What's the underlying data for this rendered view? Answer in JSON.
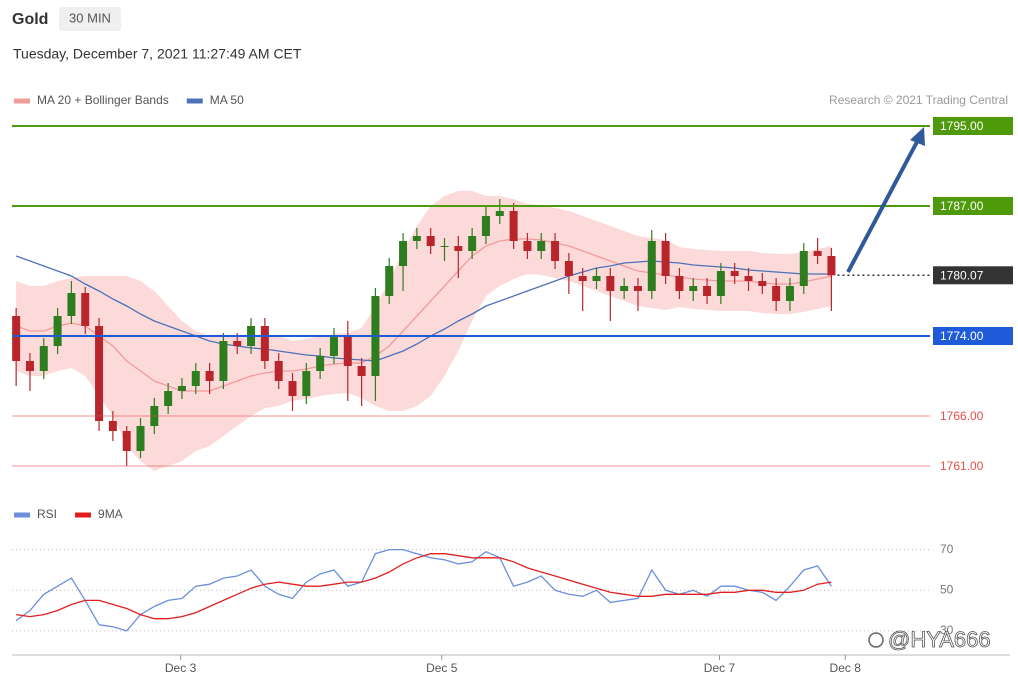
{
  "header": {
    "title": "Gold",
    "interval": "30 MIN",
    "timestamp": "Tuesday, December 7, 2021 11:27:49 AM CET"
  },
  "watermark": "@HYA666",
  "chart_data": [
    {
      "type": "candlestick",
      "credit": "Research © 2021 Trading Central",
      "xlim": [
        -0.3,
        60.2
      ],
      "ylim": [
        1758,
        1796.5
      ],
      "up_color": "#2e7d1f",
      "down_color": "#b8262b",
      "open": [
        1776,
        1771.5,
        1770.5,
        1773,
        1776,
        1778.3,
        1775,
        1765.5,
        1764.5,
        1762.5,
        1765,
        1767,
        1768.5,
        1769,
        1770.5,
        1769.5,
        1773.5,
        1773,
        1775,
        1771.5,
        1769.5,
        1768,
        1770.5,
        1772,
        1774,
        1771,
        1770,
        1778,
        1781,
        1783.5,
        1784,
        1783,
        1783,
        1782.5,
        1784,
        1786,
        1786.5,
        1783.5,
        1782.5,
        1783.5,
        1781.5,
        1780,
        1779.5,
        1780,
        1778.5,
        1779,
        1778.5,
        1783.5,
        1780,
        1778.5,
        1779,
        1778,
        1780.5,
        1780,
        1779.5,
        1779,
        1777.5,
        1779,
        1782.5,
        1782
      ],
      "high": [
        1776.8,
        1772.3,
        1773.8,
        1776.8,
        1779.5,
        1778.9,
        1775.8,
        1766.5,
        1765,
        1765.8,
        1767.8,
        1769.3,
        1769.8,
        1771.3,
        1771.3,
        1774.3,
        1774.3,
        1775.8,
        1775.8,
        1772.3,
        1770.3,
        1771.3,
        1772.8,
        1774.8,
        1775.5,
        1771.8,
        1778.8,
        1781.8,
        1784.3,
        1784.8,
        1784.8,
        1783.8,
        1784,
        1784.8,
        1787,
        1787.7,
        1787.3,
        1784.3,
        1784.3,
        1784.3,
        1782.3,
        1780.8,
        1780.8,
        1780.8,
        1779.8,
        1779.8,
        1784.6,
        1784.3,
        1780.8,
        1779.8,
        1779.8,
        1781.3,
        1781.3,
        1780.8,
        1780.3,
        1779.8,
        1779.8,
        1783.3,
        1783.8,
        1782.8
      ],
      "low": [
        1769,
        1768.5,
        1769.7,
        1772.2,
        1775.2,
        1774.2,
        1764.5,
        1763.5,
        1761,
        1761.8,
        1764.2,
        1766.2,
        1767.7,
        1768.2,
        1768.2,
        1768.7,
        1772.2,
        1772.2,
        1770.7,
        1768.7,
        1766.5,
        1767.2,
        1769.7,
        1771.2,
        1767.5,
        1767,
        1767.5,
        1777.2,
        1778.5,
        1782.7,
        1782.2,
        1781.5,
        1779.8,
        1781.7,
        1783.2,
        1785.2,
        1782.7,
        1781.7,
        1781.7,
        1780.7,
        1778.2,
        1776.5,
        1778.7,
        1775.5,
        1777.7,
        1776.5,
        1777.7,
        1779.2,
        1777.7,
        1777.5,
        1777.2,
        1777.2,
        1779.2,
        1778.5,
        1778.2,
        1776.5,
        1776.5,
        1778.2,
        1781.2,
        1776.5
      ],
      "close": [
        1771.5,
        1770.5,
        1773,
        1776,
        1778.3,
        1775,
        1765.5,
        1764.5,
        1762.5,
        1765,
        1767,
        1768.5,
        1769,
        1770.5,
        1769.5,
        1773.5,
        1773,
        1775,
        1771.5,
        1769.5,
        1768,
        1770.5,
        1772,
        1774,
        1771,
        1770,
        1778,
        1781,
        1783.5,
        1784,
        1783,
        1783,
        1782.5,
        1784,
        1786,
        1786.5,
        1783.5,
        1782.5,
        1783.5,
        1781.5,
        1780,
        1779.5,
        1780,
        1778.5,
        1779,
        1778.5,
        1783.5,
        1780,
        1778.5,
        1779,
        1778,
        1780.5,
        1780,
        1779.5,
        1779,
        1777.5,
        1779,
        1782.5,
        1782,
        1780.07
      ],
      "overlays": [
        {
          "name": "MA 20 + Bollinger Bands",
          "color": "#f29b9b",
          "band_color": "#fcdada",
          "values": [
            1775,
            1774.5,
            1774.5,
            1775,
            1775.3,
            1775,
            1774,
            1773,
            1771.5,
            1770.5,
            1769.5,
            1769,
            1768.5,
            1768.5,
            1768.5,
            1769,
            1769.5,
            1770,
            1770.3,
            1770.5,
            1770.5,
            1770.7,
            1771,
            1771.2,
            1771.3,
            1771.3,
            1772,
            1773,
            1774.5,
            1776,
            1777.5,
            1779,
            1780.5,
            1782,
            1783,
            1783.5,
            1783.7,
            1783.7,
            1783.6,
            1783.3,
            1783,
            1782.5,
            1782,
            1781.5,
            1781,
            1780.5,
            1780.3,
            1780.1,
            1779.9,
            1779.7,
            1779.6,
            1779.5,
            1779.5,
            1779.5,
            1779.3,
            1779.2,
            1779.2,
            1779.4,
            1779.7,
            1780
          ],
          "upper": [
            1779.5,
            1779,
            1779,
            1779.5,
            1779.8,
            1780,
            1780,
            1780,
            1780,
            1779.5,
            1778.5,
            1777,
            1775.5,
            1774.5,
            1774,
            1774,
            1774,
            1774,
            1773.8,
            1774,
            1773.5,
            1773.7,
            1774,
            1774.2,
            1774.3,
            1774.8,
            1777,
            1779.5,
            1782.5,
            1785,
            1787,
            1788,
            1788.5,
            1788.5,
            1788,
            1788,
            1787.7,
            1787.2,
            1787.1,
            1786.8,
            1786.5,
            1786,
            1785.5,
            1785,
            1784.5,
            1784,
            1783.8,
            1783.6,
            1782.9,
            1782.7,
            1782.6,
            1782.5,
            1782.5,
            1782.5,
            1782.3,
            1782.2,
            1782.2,
            1782.4,
            1782.7,
            1783
          ],
          "lower": [
            1770.5,
            1770,
            1770,
            1770.5,
            1770.8,
            1770,
            1768,
            1766,
            1763,
            1761.5,
            1760.5,
            1761,
            1761.5,
            1762.5,
            1763,
            1764,
            1765,
            1766,
            1766.8,
            1767,
            1767.5,
            1767.7,
            1768,
            1768.2,
            1768.3,
            1767.8,
            1767,
            1766.5,
            1766.5,
            1767,
            1768,
            1770,
            1772.5,
            1775.5,
            1778,
            1779,
            1779.7,
            1780.2,
            1780.1,
            1779.8,
            1779.5,
            1779,
            1778.5,
            1778,
            1777.5,
            1777,
            1776.8,
            1776.6,
            1776.9,
            1776.7,
            1776.6,
            1776.5,
            1776.5,
            1776.5,
            1776.3,
            1776.2,
            1776.2,
            1776.4,
            1776.7,
            1777
          ]
        },
        {
          "name": "MA 50",
          "color": "#4d72b8",
          "values": [
            1782,
            1781.5,
            1781,
            1780.5,
            1780,
            1779.2,
            1778.5,
            1777.7,
            1777,
            1776.2,
            1775.5,
            1775,
            1774.5,
            1774,
            1773.5,
            1773.2,
            1773,
            1772.8,
            1772.7,
            1772.5,
            1772.3,
            1772.1,
            1772,
            1771.8,
            1771.7,
            1771.6,
            1771.5,
            1772,
            1772.5,
            1773.2,
            1774,
            1774.7,
            1775.5,
            1776.2,
            1777,
            1777.5,
            1778,
            1778.5,
            1779,
            1779.5,
            1780,
            1780.4,
            1780.8,
            1781,
            1781.3,
            1781.4,
            1781.5,
            1781.4,
            1781.3,
            1781.1,
            1781,
            1780.9,
            1780.8,
            1780.6,
            1780.5,
            1780.4,
            1780.3,
            1780.2,
            1780.2,
            1780.2
          ]
        }
      ],
      "levels": [
        {
          "value": 1795,
          "label": "1795.00",
          "color": "#4f9a0a",
          "style": "solid",
          "box": true
        },
        {
          "value": 1787,
          "label": "1787.00",
          "color": "#4f9a0a",
          "style": "solid",
          "box": true
        },
        {
          "value": 1780.07,
          "label": "1780.07",
          "color": "#333333",
          "style": "dotted",
          "box": true
        },
        {
          "value": 1774,
          "label": "1774.00",
          "color": "#1e5bd8",
          "style": "solid",
          "box": true
        },
        {
          "value": 1766,
          "label": "1766.00",
          "color": "#e0504a",
          "style": "solid",
          "box": false
        },
        {
          "value": 1761,
          "label": "1761.00",
          "color": "#e0504a",
          "style": "solid",
          "box": false
        }
      ]
    },
    {
      "type": "line",
      "xlim": [
        -0.3,
        60.2
      ],
      "ylim": [
        25,
        75
      ],
      "yticks": [
        30,
        50,
        70
      ],
      "grid": true,
      "xticks": [
        {
          "value": 11.9,
          "label": "Dec 3"
        },
        {
          "value": 30.8,
          "label": "Dec 5"
        },
        {
          "value": 50.9,
          "label": "Dec 7"
        },
        {
          "value": 60,
          "label": "Dec 8"
        }
      ],
      "series": [
        {
          "name": "RSI",
          "color": "#6b8fdc",
          "values": [
            35,
            40,
            48,
            52,
            56,
            45,
            33,
            32,
            30,
            38,
            42,
            45,
            46,
            52,
            53,
            56,
            57,
            60,
            52,
            48,
            46,
            54,
            58,
            60,
            52,
            54,
            68,
            70,
            70,
            68,
            66,
            65,
            63,
            64,
            69,
            66,
            52,
            54,
            57,
            50,
            48,
            47,
            50,
            44,
            45,
            46,
            60,
            50,
            48,
            50,
            47,
            52,
            52,
            50,
            49,
            45,
            52,
            60,
            62,
            52
          ]
        },
        {
          "name": "9MA",
          "color": "#e02020",
          "values": [
            38,
            37,
            38,
            40,
            43,
            45,
            45,
            43,
            41,
            38,
            36,
            36,
            37,
            39,
            42,
            45,
            48,
            51,
            53,
            54,
            53,
            52,
            52,
            53,
            54,
            54,
            56,
            59,
            63,
            66,
            68,
            68,
            67,
            66,
            66,
            66,
            64,
            61,
            59,
            57,
            55,
            53,
            51,
            49,
            48,
            47,
            47,
            48,
            48,
            48,
            48,
            49,
            49,
            50,
            50,
            49,
            49,
            50,
            53,
            54
          ]
        }
      ]
    }
  ]
}
